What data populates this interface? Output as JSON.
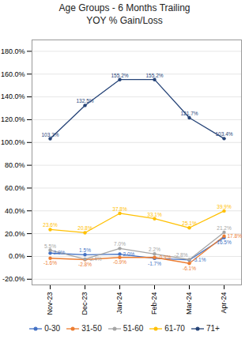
{
  "chart_data": {
    "type": "line",
    "title": "Age Groups - 6 Months Trailing\nYOY % Gain/Loss",
    "categories": [
      "Nov-23",
      "Dec-23",
      "Jan-24",
      "Feb-24",
      "Mar-24",
      "Apr-24"
    ],
    "series": [
      {
        "name": "0-30",
        "color": "#4472C4",
        "values": [
          2.9,
          1.5,
          2.0,
          -1.7,
          -3.1,
          16.5
        ],
        "value_labels": [
          "2.9%",
          "1.5%",
          "2.0%",
          "-1.7%",
          "-3.1%",
          "16.5%"
        ]
      },
      {
        "name": "31-50",
        "color": "#ED7D31",
        "values": [
          -1.6,
          -2.8,
          -0.9,
          -0.9,
          -6.1,
          17.8
        ],
        "value_labels": [
          "-1.6%",
          "-2.8%",
          "-0.9%",
          "-0.9%",
          "-6.1%",
          "17.8%"
        ]
      },
      {
        "name": "51-60",
        "color": "#A5A5A5",
        "values": [
          5.5,
          -2.4,
          7.0,
          2.2,
          -2.8,
          21.2
        ],
        "value_labels": [
          "5.5%",
          "-2.4%",
          "7.0%",
          "2.2%",
          "-2.8%",
          "21.2%"
        ]
      },
      {
        "name": "61-70",
        "color": "#FFC000",
        "values": [
          23.6,
          20.8,
          37.8,
          33.1,
          25.1,
          39.9
        ],
        "value_labels": [
          "23.6%",
          "20.8%",
          "37.8%",
          "33.1%",
          "25.1%",
          "39.9%"
        ]
      },
      {
        "name": "71+",
        "color": "#264478",
        "values": [
          103.3,
          132.5,
          155.2,
          155.2,
          121.7,
          103.4
        ],
        "value_labels": [
          "103.3%",
          "132.5%",
          "155.2%",
          "155.2%",
          "121.7%",
          "103.4%"
        ]
      }
    ],
    "ylim": [
      -25,
      190
    ],
    "yticks": [
      {
        "value": -20,
        "label": "-20.0%"
      },
      {
        "value": 0,
        "label": "0.0%"
      },
      {
        "value": 20,
        "label": "20.0%"
      },
      {
        "value": 40,
        "label": "40.0%"
      },
      {
        "value": 60,
        "label": "60.0%"
      },
      {
        "value": 80,
        "label": "80.0%"
      },
      {
        "value": 100,
        "label": "100.0%"
      },
      {
        "value": 120,
        "label": "120.0%"
      },
      {
        "value": 140,
        "label": "140.0%"
      },
      {
        "value": 160,
        "label": "160.0%"
      },
      {
        "value": 180,
        "label": "180.0%"
      }
    ],
    "grid": true,
    "legend": "bottom",
    "data_labels": true,
    "marker": "circle"
  }
}
